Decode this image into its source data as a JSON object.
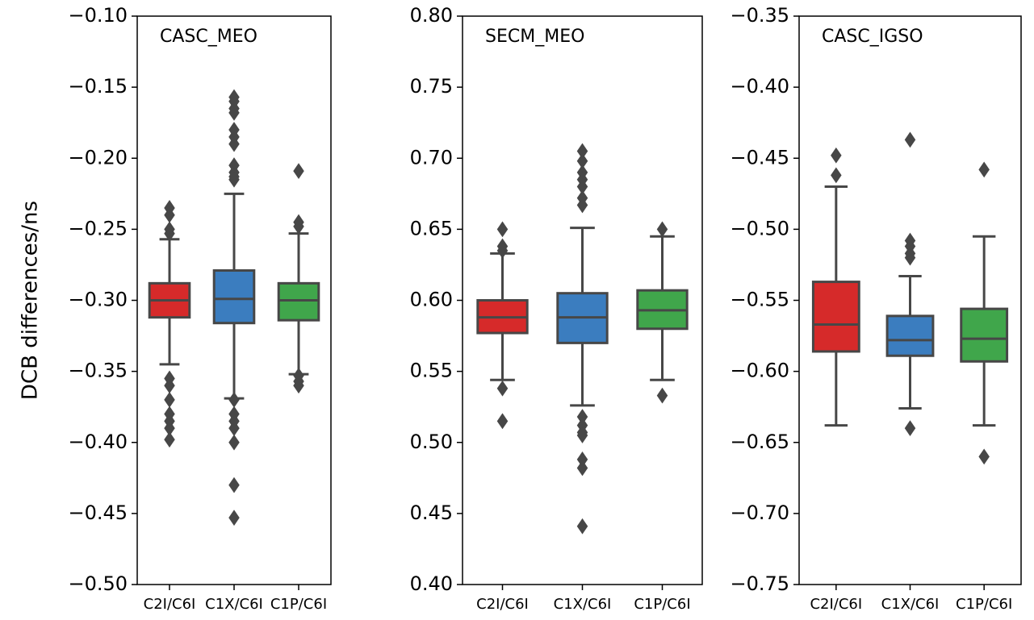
{
  "chart_data": [
    {
      "type": "box",
      "title": "CASC_MEO",
      "y_label": "DCB differences/ns",
      "categories": [
        "C2I/C6I",
        "C1X/C6I",
        "C1P/C6I"
      ],
      "ylim": [
        -0.5,
        -0.1
      ],
      "yticks": [
        {
          "value": -0.5,
          "label": "−0.50"
        },
        {
          "value": -0.45,
          "label": "−0.45"
        },
        {
          "value": -0.4,
          "label": "−0.40"
        },
        {
          "value": -0.35,
          "label": "−0.35"
        },
        {
          "value": -0.3,
          "label": "−0.30"
        },
        {
          "value": -0.25,
          "label": "−0.25"
        },
        {
          "value": -0.2,
          "label": "−0.20"
        },
        {
          "value": -0.15,
          "label": "−0.15"
        },
        {
          "value": -0.1,
          "label": "−0.10"
        }
      ],
      "boxes": [
        {
          "color": "#d62a2a",
          "whisker_low": -0.345,
          "q1": -0.312,
          "median": -0.3,
          "q3": -0.288,
          "whisker_high": -0.257,
          "outliers": [
            -0.235,
            -0.24,
            -0.25,
            -0.253,
            -0.355,
            -0.36,
            -0.37,
            -0.38,
            -0.385,
            -0.39,
            -0.398
          ]
        },
        {
          "color": "#3b7dbf",
          "whisker_low": -0.369,
          "q1": -0.316,
          "median": -0.299,
          "q3": -0.279,
          "whisker_high": -0.225,
          "outliers": [
            -0.157,
            -0.16,
            -0.165,
            -0.168,
            -0.18,
            -0.185,
            -0.19,
            -0.205,
            -0.21,
            -0.213,
            -0.215,
            -0.37,
            -0.38,
            -0.385,
            -0.39,
            -0.4,
            -0.43,
            -0.453
          ]
        },
        {
          "color": "#40a64b",
          "whisker_low": -0.352,
          "q1": -0.314,
          "median": -0.3,
          "q3": -0.288,
          "whisker_high": -0.253,
          "outliers": [
            -0.209,
            -0.245,
            -0.248,
            -0.353,
            -0.357,
            -0.36
          ]
        }
      ]
    },
    {
      "type": "box",
      "title": "SECM_MEO",
      "categories": [
        "C2I/C6I",
        "C1X/C6I",
        "C1P/C6I"
      ],
      "ylim": [
        0.4,
        0.8
      ],
      "yticks": [
        {
          "value": 0.4,
          "label": "0.40"
        },
        0.45,
        {
          "value": 0.5,
          "label": "0.50"
        },
        0.55,
        {
          "value": 0.6,
          "label": "0.60"
        },
        0.65,
        {
          "value": 0.7,
          "label": "0.70"
        },
        0.75,
        {
          "value": 0.8,
          "label": "0.80"
        }
      ],
      "boxes": [
        {
          "color": "#d62a2a",
          "whisker_low": 0.544,
          "q1": 0.577,
          "median": 0.588,
          "q3": 0.6,
          "whisker_high": 0.633,
          "outliers": [
            0.65,
            0.638,
            0.635,
            0.538,
            0.515
          ]
        },
        {
          "color": "#3b7dbf",
          "whisker_low": 0.526,
          "q1": 0.57,
          "median": 0.588,
          "q3": 0.605,
          "whisker_high": 0.651,
          "outliers": [
            0.705,
            0.698,
            0.69,
            0.685,
            0.68,
            0.672,
            0.667,
            0.518,
            0.512,
            0.507,
            0.505,
            0.488,
            0.482,
            0.441
          ]
        },
        {
          "color": "#40a64b",
          "whisker_low": 0.544,
          "q1": 0.58,
          "median": 0.593,
          "q3": 0.607,
          "whisker_high": 0.645,
          "outliers": [
            0.65,
            0.533
          ]
        }
      ]
    },
    {
      "type": "box",
      "title": "CASC_IGSO",
      "categories": [
        "C2I/C6I",
        "C1X/C6I",
        "C1P/C6I"
      ],
      "ylim": [
        -0.75,
        -0.35
      ],
      "yticks": [
        {
          "value": -0.75,
          "label": "−0.75"
        },
        {
          "value": -0.7,
          "label": "−0.70"
        },
        {
          "value": -0.65,
          "label": "−0.65"
        },
        {
          "value": -0.6,
          "label": "−0.60"
        },
        {
          "value": -0.55,
          "label": "−0.55"
        },
        {
          "value": -0.5,
          "label": "−0.50"
        },
        {
          "value": -0.45,
          "label": "−0.45"
        },
        {
          "value": -0.4,
          "label": "−0.40"
        },
        {
          "value": -0.35,
          "label": "−0.35"
        }
      ],
      "boxes": [
        {
          "color": "#d62a2a",
          "whisker_low": -0.638,
          "q1": -0.586,
          "median": -0.567,
          "q3": -0.537,
          "whisker_high": -0.47,
          "outliers": [
            -0.448,
            -0.462
          ]
        },
        {
          "color": "#3b7dbf",
          "whisker_low": -0.626,
          "q1": -0.589,
          "median": -0.578,
          "q3": -0.561,
          "whisker_high": -0.533,
          "outliers": [
            -0.437,
            -0.508,
            -0.512,
            -0.517,
            -0.52,
            -0.64
          ]
        },
        {
          "color": "#40a64b",
          "whisker_low": -0.638,
          "q1": -0.593,
          "median": -0.577,
          "q3": -0.556,
          "whisker_high": -0.505,
          "outliers": [
            -0.458,
            -0.66
          ]
        }
      ]
    }
  ]
}
